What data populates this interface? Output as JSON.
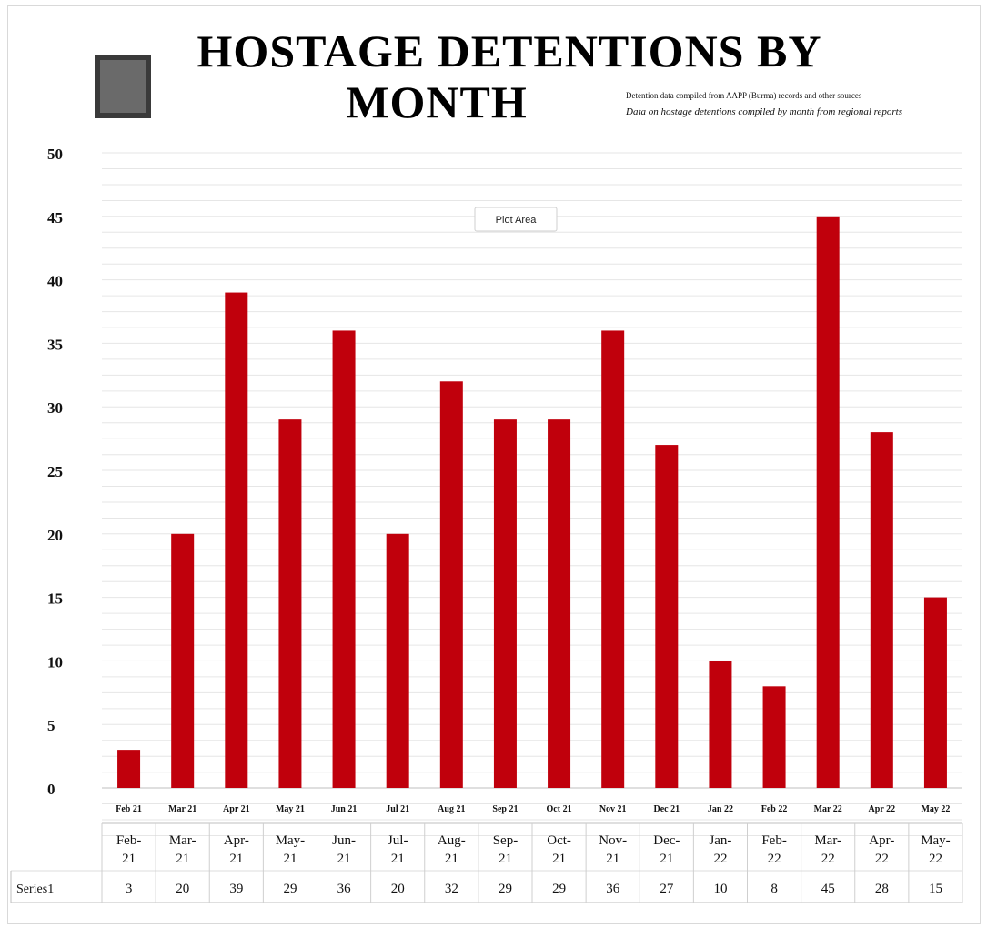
{
  "chart_data": {
    "type": "bar",
    "title_line1": "HOSTAGE DETENTIONS BY",
    "title_line2": "MONTH",
    "subtitle_line1": "Detention data compiled from AAPP (Burma) records and other sources",
    "subtitle_line2": "Data on hostage detentions compiled by month from regional reports",
    "plot_area_label": "Plot Area",
    "series_label": "Series1",
    "categories": [
      "Feb 21",
      "Mar 21",
      "Apr 21",
      "May 21",
      "Jun 21",
      "Jul 21",
      "Aug 21",
      "Sep 21",
      "Oct 21",
      "Nov 21",
      "Dec 21",
      "Jan 22",
      "Feb 22",
      "Mar 22",
      "Apr 22",
      "May 22"
    ],
    "table_headers": [
      "Feb-21",
      "Mar-21",
      "Apr-21",
      "May-21",
      "Jun-21",
      "Jul-21",
      "Aug-21",
      "Sep-21",
      "Oct-21",
      "Nov-21",
      "Dec-21",
      "Jan-22",
      "Feb-22",
      "Mar-22",
      "Apr-22",
      "May-22"
    ],
    "values": [
      3,
      20,
      39,
      29,
      36,
      20,
      32,
      29,
      29,
      36,
      27,
      10,
      8,
      45,
      28,
      15
    ],
    "ylim": [
      0,
      50
    ],
    "yticks": [
      0,
      5,
      10,
      15,
      20,
      25,
      30,
      35,
      40,
      45,
      50
    ],
    "grid": true,
    "bar_color": "#c0000c"
  }
}
